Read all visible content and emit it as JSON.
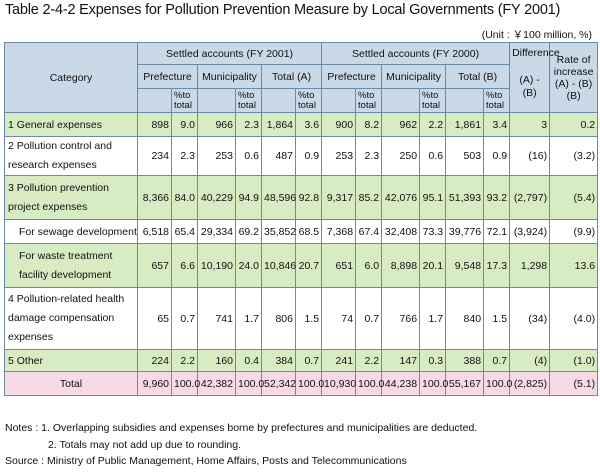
{
  "title": "Table 2-4-2  Expenses for Pollution Prevention Measure by Local Governments (FY 2001)",
  "unit": "(Unit : ￥100 million, %)",
  "header": {
    "category": "Category",
    "settled_2001": "Settled accounts (FY 2001)",
    "settled_2000": "Settled accounts (FY 2000)",
    "difference": "Difference",
    "difference_formula": "(A) - (B)",
    "rate": "Rate of increase (A) - (B) (B)",
    "prefecture": "Prefecture",
    "municipality": "Municipality",
    "total_a": "Total (A)",
    "total_b": "Total (B)",
    "pct_total": "%to total"
  },
  "rows": [
    {
      "label": "1   General expenses",
      "cells": [
        "898",
        "9.0",
        "966",
        "2.3",
        "1,864",
        "3.6",
        "900",
        "8.2",
        "962",
        "2.2",
        "1,861",
        "3.4",
        "3",
        "0.2"
      ]
    },
    {
      "label": "2   Pollution control and research expenses",
      "cells": [
        "234",
        "2.3",
        "253",
        "0.6",
        "487",
        "0.9",
        "253",
        "2.3",
        "250",
        "0.6",
        "503",
        "0.9",
        "(16)",
        "(3.2)"
      ]
    },
    {
      "label": "3   Pollution prevention project expenses",
      "cells": [
        "8,366",
        "84.0",
        "40,229",
        "94.9",
        "48,596",
        "92.8",
        "9,317",
        "85.2",
        "42,076",
        "95.1",
        "51,393",
        "93.2",
        "(2,797)",
        "(5.4)"
      ]
    },
    {
      "label": "For sewage development",
      "cells": [
        "6,518",
        "65.4",
        "29,334",
        "69.2",
        "35,852",
        "68.5",
        "7,368",
        "67.4",
        "32,408",
        "73.3",
        "39,776",
        "72.1",
        "(3,924)",
        "(9.9)"
      ]
    },
    {
      "label": "For waste treatment facility development",
      "cells": [
        "657",
        "6.6",
        "10,190",
        "24.0",
        "10,846",
        "20.7",
        "651",
        "6.0",
        "8,898",
        "20.1",
        "9,548",
        "17.3",
        "1,298",
        "13.6"
      ]
    },
    {
      "label": "4   Pollution-related health damage compensation expenses",
      "cells": [
        "65",
        "0.7",
        "741",
        "1.7",
        "806",
        "1.5",
        "74",
        "0.7",
        "766",
        "1.7",
        "840",
        "1.5",
        "(34)",
        "(4.0)"
      ]
    },
    {
      "label": "5   Other",
      "cells": [
        "224",
        "2.2",
        "160",
        "0.4",
        "384",
        "0.7",
        "241",
        "2.2",
        "147",
        "0.3",
        "388",
        "0.7",
        "(4)",
        "(1.0)"
      ]
    },
    {
      "label": "Total",
      "cells": [
        "9,960",
        "100.0",
        "42,382",
        "100.0",
        "52,342",
        "100.0",
        "10,930",
        "100.0",
        "44,238",
        "100.0",
        "55,167",
        "100.0",
        "(2,825)",
        "(5.1)"
      ]
    }
  ],
  "notes": [
    "Notes : 1. Overlapping subsidies and expenses borne by prefectures and municipalities are deducted.",
    "2. Totals may not add up due to rounding.",
    "Source : Ministry of Public Management, Home Affairs, Posts and Telecommunications"
  ]
}
